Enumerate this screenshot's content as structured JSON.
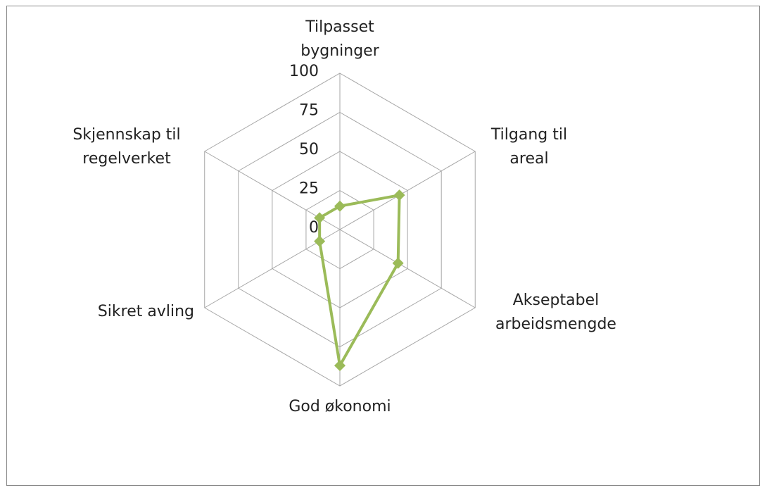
{
  "chart_data": {
    "type": "radar",
    "categories": [
      "Tilpasset bygninger",
      "Tilgang til areal",
      "Akseptabel arbeidsmengde",
      "God økonomi",
      "Sikret avling",
      "Skjennskap til regelverket"
    ],
    "series": [
      {
        "name": null,
        "color": "#9bbb59",
        "values": [
          15,
          44,
          43,
          87,
          15,
          15
        ]
      }
    ],
    "ylim": [
      0,
      100
    ],
    "yticks": [
      0,
      25,
      50,
      75,
      100
    ],
    "grid": true
  }
}
